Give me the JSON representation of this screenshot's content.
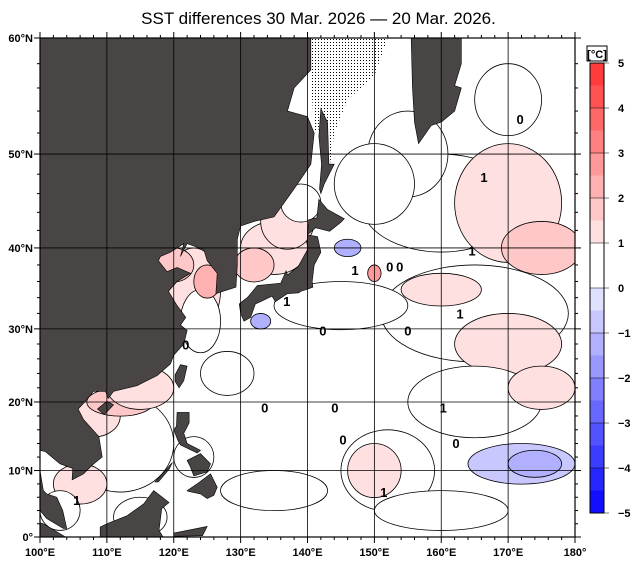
{
  "title": "SST differences 30 Mar. 2026 — 20 Mar. 2026.",
  "map": {
    "projection": "mercator",
    "lon_range": [
      100,
      180
    ],
    "lat_range": [
      0,
      60
    ],
    "lon_labels": [
      "100°E",
      "110°E",
      "120°E",
      "130°E",
      "140°E",
      "150°E",
      "160°E",
      "170°E",
      "180°"
    ],
    "lat_labels": [
      "0°",
      "10°N",
      "20°N",
      "30°N",
      "40°N",
      "50°N",
      "60°N"
    ],
    "land_color": "#4a4545",
    "ice_pattern": "stippled",
    "contour_labels": [
      {
        "text": "1",
        "lon": 147.1,
        "lat": 37.4
      },
      {
        "text": "0",
        "lon": 152.3,
        "lat": 37.8
      },
      {
        "text": "0",
        "lon": 153.8,
        "lat": 37.8
      },
      {
        "text": "1",
        "lon": 166.4,
        "lat": 47.7
      },
      {
        "text": "0",
        "lon": 171.8,
        "lat": 53.3
      },
      {
        "text": "1",
        "lon": 164.6,
        "lat": 39.7
      },
      {
        "text": "1",
        "lon": 162.8,
        "lat": 32.0
      },
      {
        "text": "0",
        "lon": 142.3,
        "lat": 29.8
      },
      {
        "text": "0",
        "lon": 155.0,
        "lat": 29.8
      },
      {
        "text": "1",
        "lon": 136.9,
        "lat": 33.6
      },
      {
        "text": "0",
        "lon": 121.8,
        "lat": 27.9
      },
      {
        "text": "0",
        "lon": 133.6,
        "lat": 19.2
      },
      {
        "text": "0",
        "lon": 144.1,
        "lat": 19.2
      },
      {
        "text": "1",
        "lon": 160.3,
        "lat": 19.2
      },
      {
        "text": "0",
        "lon": 145.3,
        "lat": 14.6
      },
      {
        "text": "0",
        "lon": 162.2,
        "lat": 14.1
      },
      {
        "text": "1",
        "lon": 151.4,
        "lat": 6.8
      },
      {
        "text": "1",
        "lon": 105.5,
        "lat": 5.6
      }
    ]
  },
  "colorbar": {
    "unit": "[°C]",
    "ticks": [
      "5",
      "4",
      "3",
      "2",
      "1",
      "0",
      "−1",
      "−2",
      "−3",
      "−4",
      "−5"
    ],
    "min": -5,
    "max": 5,
    "step": 0.5,
    "colors": [
      "#1010ff",
      "#2626ff",
      "#3c3cff",
      "#5252ff",
      "#6868ff",
      "#8080ff",
      "#9898ff",
      "#b0b0ff",
      "#c8c8ff",
      "#e0e0ff",
      "#ffffff",
      "#ffffff",
      "#ffe0e0",
      "#ffc8c8",
      "#ffb0b0",
      "#ff9898",
      "#ff8080",
      "#ff6868",
      "#ff5252",
      "#ff3c3c",
      "#ff1e1e"
    ]
  }
}
